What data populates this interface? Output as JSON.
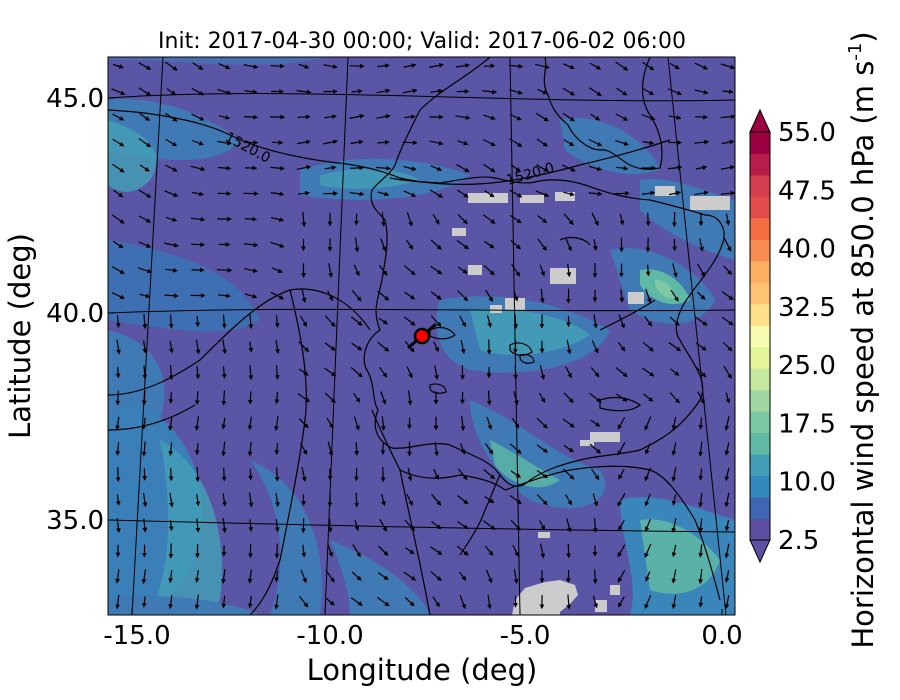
{
  "chart_data": {
    "type": "heatmap",
    "title": "Init: 2017-04-30 00:00; Valid: 2017-06-02 06:00",
    "xlabel": "Longitude (deg)",
    "ylabel": "Latitude (deg)",
    "xlim": [
      -15.8,
      0.2
    ],
    "ylim": [
      32.7,
      46.0
    ],
    "x_ticks": [
      "-15.0",
      "-10.0",
      "-5.0",
      "0.0"
    ],
    "x_tick_values": [
      -15,
      -10,
      -5,
      0
    ],
    "y_ticks": [
      "45.0",
      "40.0",
      "35.0"
    ],
    "y_tick_values": [
      45,
      40,
      35
    ],
    "colorbar": {
      "label": "Horizontal wind speed at 850.0 hPa (m s",
      "label_exponent": "-1",
      "label_close": ")",
      "ticks": [
        "2.5",
        "10.0",
        "17.5",
        "25.0",
        "32.5",
        "40.0",
        "47.5",
        "55.0"
      ],
      "tick_values": [
        2.5,
        10.0,
        17.5,
        25.0,
        32.5,
        40.0,
        47.5,
        55.0
      ],
      "range": [
        2.5,
        55.0
      ],
      "extend": "both",
      "colors": [
        "#5e4fa2",
        "#3f66b3",
        "#3288bd",
        "#449db6",
        "#5fb9a5",
        "#7dc8a4",
        "#a0d8a3",
        "#c7e8a0",
        "#e6f598",
        "#f6fbb2",
        "#fee08b",
        "#fdc372",
        "#fdae61",
        "#f88c52",
        "#f46d43",
        "#e14c4a",
        "#d53e4f",
        "#b71d48",
        "#9e0142"
      ]
    },
    "contours": [
      {
        "label": "1520.0",
        "level": 1520.0
      },
      {
        "label": "1520.0",
        "level": 1520.0
      }
    ],
    "marker": {
      "lon": -7.6,
      "lat": 39.3,
      "color": "#ff0000"
    },
    "missing_color": "#cccccc",
    "background_wind_speed": 5.0
  }
}
